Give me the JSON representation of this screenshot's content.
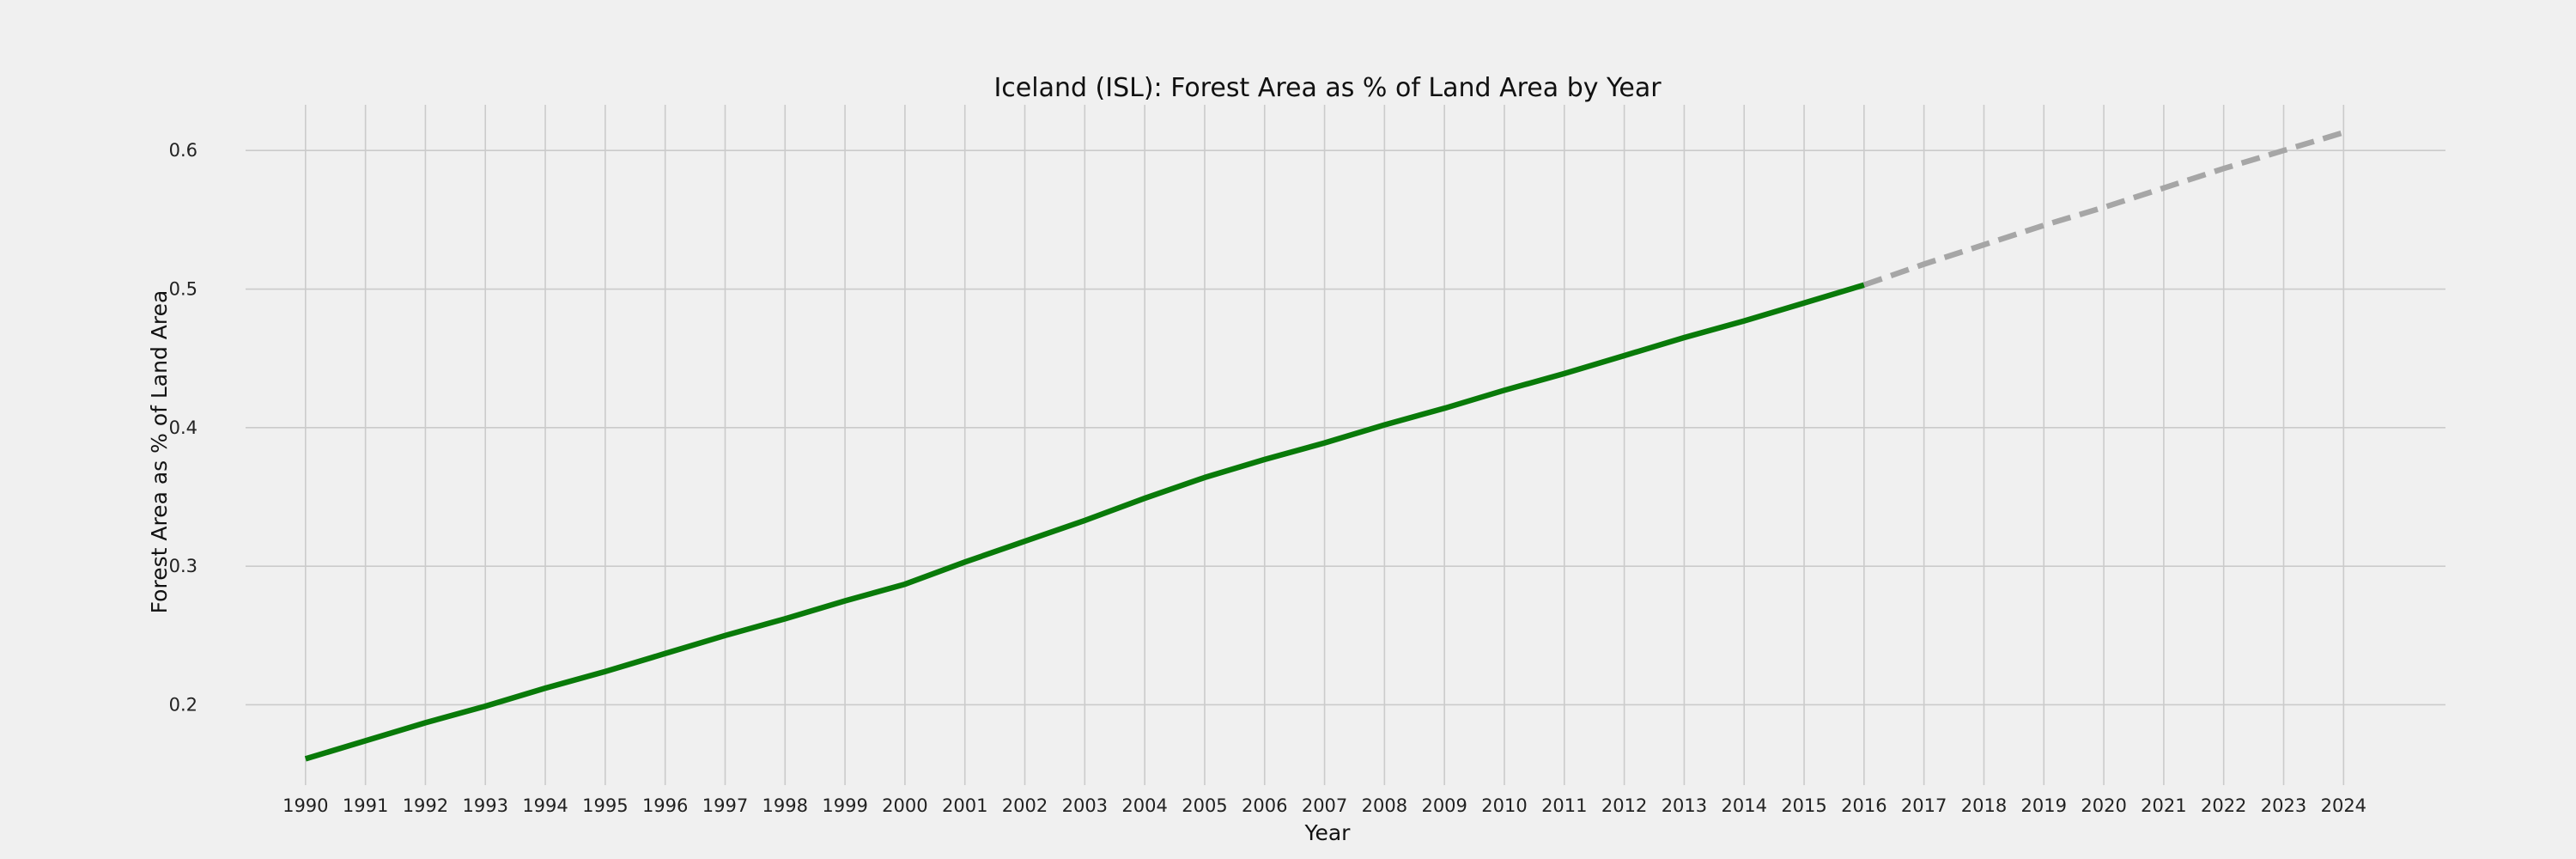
{
  "chart_data": {
    "type": "line",
    "title": "Iceland (ISL): Forest Area as % of Land Area by Year",
    "xlabel": "Year",
    "ylabel": "Forest Area as % of Land Area",
    "x": [
      1990,
      1991,
      1992,
      1993,
      1994,
      1995,
      1996,
      1997,
      1998,
      1999,
      2000,
      2001,
      2002,
      2003,
      2004,
      2005,
      2006,
      2007,
      2008,
      2009,
      2010,
      2011,
      2012,
      2013,
      2014,
      2015,
      2016,
      2017,
      2018,
      2019,
      2020,
      2021,
      2022,
      2023,
      2024
    ],
    "xticks": [
      "1990",
      "1991",
      "1992",
      "1993",
      "1994",
      "1995",
      "1996",
      "1997",
      "1998",
      "1999",
      "2000",
      "2001",
      "2002",
      "2003",
      "2004",
      "2005",
      "2006",
      "2007",
      "2008",
      "2009",
      "2010",
      "2011",
      "2012",
      "2013",
      "2014",
      "2015",
      "2016",
      "2017",
      "2018",
      "2019",
      "2020",
      "2021",
      "2022",
      "2023",
      "2024"
    ],
    "yticks": [
      "0.2",
      "0.3",
      "0.4",
      "0.5",
      "0.6"
    ],
    "ytick_values": [
      0.2,
      0.3,
      0.4,
      0.5,
      0.6
    ],
    "xlim": [
      1989.0,
      2025.7
    ],
    "ylim": [
      0.142,
      0.633
    ],
    "grid": true,
    "series": [
      {
        "style": "solid",
        "color": "#097a09",
        "x": [
          1990,
          1991,
          1992,
          1993,
          1994,
          1995,
          1996,
          1997,
          1998,
          1999,
          2000,
          2001,
          2002,
          2003,
          2004,
          2005,
          2006,
          2007,
          2008,
          2009,
          2010,
          2011,
          2012,
          2013,
          2014,
          2015,
          2016
        ],
        "y": [
          0.161,
          0.174,
          0.187,
          0.199,
          0.212,
          0.224,
          0.237,
          0.25,
          0.262,
          0.275,
          0.287,
          0.303,
          0.318,
          0.333,
          0.349,
          0.364,
          0.377,
          0.389,
          0.402,
          0.414,
          0.427,
          0.439,
          0.452,
          0.465,
          0.477,
          0.49,
          0.503
        ]
      },
      {
        "style": "dashed",
        "color": "#a6a6a6",
        "x": [
          2016,
          2017,
          2018,
          2019,
          2020,
          2021,
          2022,
          2023,
          2024
        ],
        "y": [
          0.503,
          0.518,
          0.532,
          0.546,
          0.559,
          0.573,
          0.587,
          0.6,
          0.613
        ]
      }
    ]
  }
}
